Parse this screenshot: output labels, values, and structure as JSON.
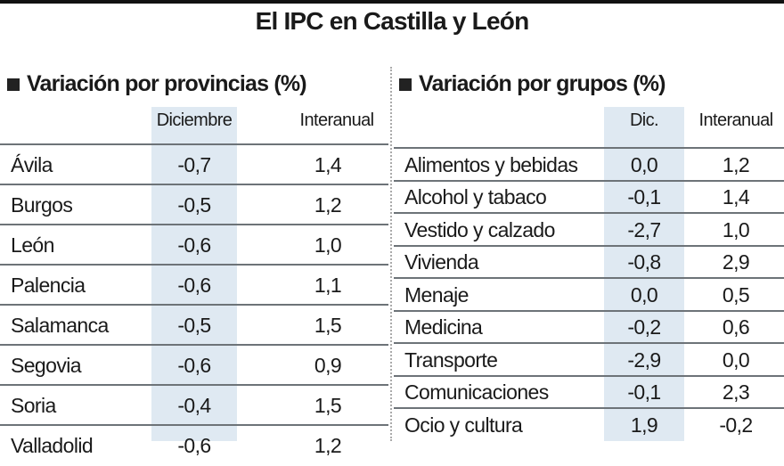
{
  "title": "El IPC en Castilla y León",
  "colors": {
    "shade": "#dfe9f2",
    "text": "#1a1a1a",
    "rule": "#6d7378"
  },
  "chart_data": [
    {
      "type": "table",
      "title": "Variación por provincias (%)",
      "columns": [
        "",
        "Diciembre",
        "Interanual"
      ],
      "rows": [
        {
          "name": "Ávila",
          "dic": "-0,7",
          "inter": "1,4"
        },
        {
          "name": "Burgos",
          "dic": "-0,5",
          "inter": "1,2"
        },
        {
          "name": "León",
          "dic": "-0,6",
          "inter": "1,0"
        },
        {
          "name": "Palencia",
          "dic": "-0,6",
          "inter": "1,1"
        },
        {
          "name": "Salamanca",
          "dic": "-0,5",
          "inter": "1,5"
        },
        {
          "name": "Segovia",
          "dic": "-0,6",
          "inter": "0,9"
        },
        {
          "name": "Soria",
          "dic": "-0,4",
          "inter": "1,5"
        },
        {
          "name": "Valladolid",
          "dic": "-0,6",
          "inter": "1,2"
        }
      ]
    },
    {
      "type": "table",
      "title": "Variación por grupos (%)",
      "columns": [
        "",
        "Dic.",
        "Interanual"
      ],
      "rows": [
        {
          "name": "Alimentos y bebidas",
          "dic": "0,0",
          "inter": "1,2"
        },
        {
          "name": "Alcohol y tabaco",
          "dic": "-0,1",
          "inter": "1,4"
        },
        {
          "name": "Vestido y calzado",
          "dic": "-2,7",
          "inter": "1,0"
        },
        {
          "name": "Vivienda",
          "dic": "-0,8",
          "inter": "2,9"
        },
        {
          "name": "Menaje",
          "dic": "0,0",
          "inter": "0,5"
        },
        {
          "name": "Medicina",
          "dic": "-0,2",
          "inter": "0,6"
        },
        {
          "name": "Transporte",
          "dic": "-2,9",
          "inter": "0,0"
        },
        {
          "name": "Comunicaciones",
          "dic": "-0,1",
          "inter": "2,3"
        },
        {
          "name": "Ocio y cultura",
          "dic": "1,9",
          "inter": "-0,2"
        }
      ]
    }
  ]
}
